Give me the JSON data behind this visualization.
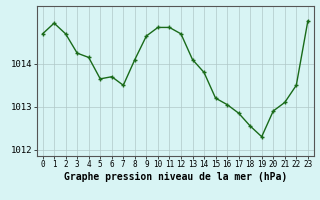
{
  "x": [
    0,
    1,
    2,
    3,
    4,
    5,
    6,
    7,
    8,
    9,
    10,
    11,
    12,
    13,
    14,
    15,
    16,
    17,
    18,
    19,
    20,
    21,
    22,
    23
  ],
  "y": [
    1014.7,
    1014.95,
    1014.7,
    1014.25,
    1014.15,
    1013.65,
    1013.7,
    1013.5,
    1014.1,
    1014.65,
    1014.85,
    1014.85,
    1014.7,
    1014.1,
    1013.8,
    1013.2,
    1013.05,
    1012.85,
    1012.55,
    1012.3,
    1012.9,
    1013.1,
    1013.5,
    1015.0
  ],
  "line_color": "#1a6b1a",
  "marker": "+",
  "marker_size": 3,
  "marker_linewidth": 1.0,
  "bg_color": "#d8f4f4",
  "grid_color": "#b0c8c8",
  "xlabel": "Graphe pression niveau de la mer (hPa)",
  "yticks": [
    1012,
    1013,
    1014
  ],
  "ylim": [
    1011.85,
    1015.35
  ],
  "xlim": [
    -0.5,
    23.5
  ],
  "xlabel_fontsize": 7,
  "ytick_fontsize": 6.5,
  "xtick_fontsize": 5.5,
  "line_width": 1.0
}
